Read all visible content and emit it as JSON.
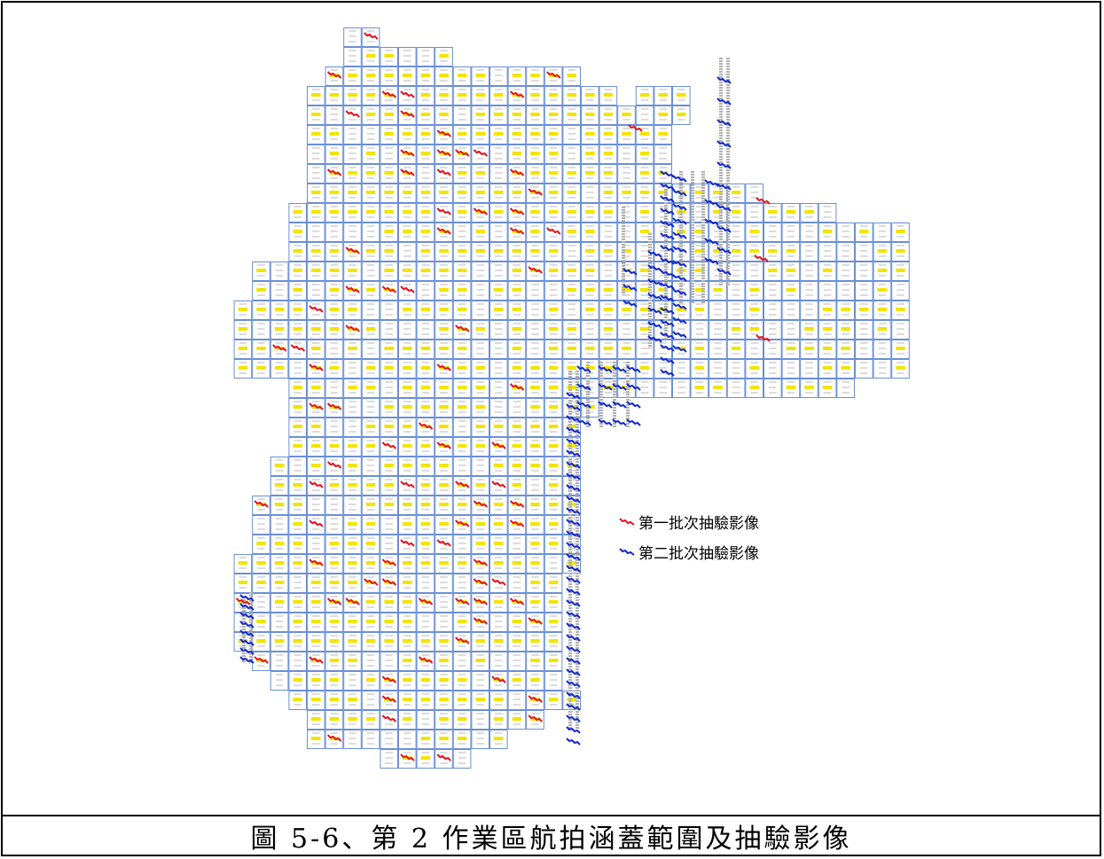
{
  "figure": {
    "caption": "圖 5-6、第 2 作業區航拍涵蓋範圍及抽驗影像"
  },
  "legend": [
    {
      "label": "第一批次抽驗影像",
      "color": "#e0141e",
      "icon": "red-photo-strip-icon"
    },
    {
      "label": "第二批次抽驗影像",
      "color": "#1328cc",
      "icon": "blue-photo-strip-icon"
    }
  ],
  "colors": {
    "tile_border": "#6b8fd6",
    "image_footprint": "#f2e400",
    "first_batch": "#e0141e",
    "second_batch": "#1328cc",
    "flight_line": "#b0b0b0"
  }
}
